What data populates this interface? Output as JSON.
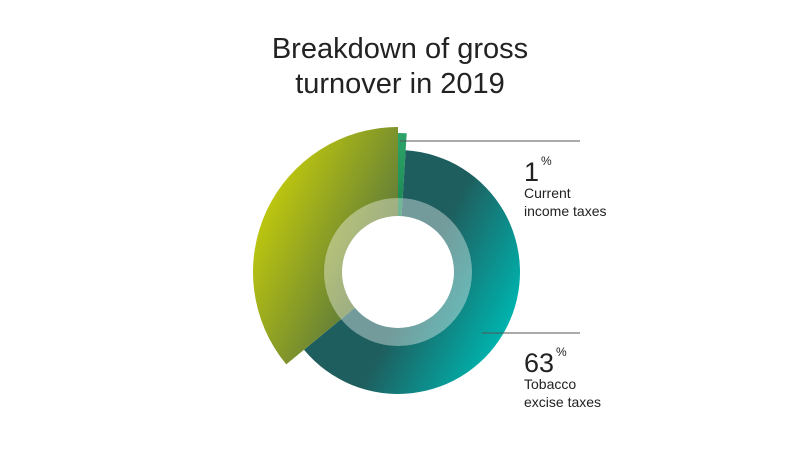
{
  "title_lines": [
    "Breakdown of gross",
    "turnover in 2019"
  ],
  "chart_data": {
    "type": "pie",
    "title": "Breakdown of gross turnover in 2019",
    "slices": [
      {
        "value": 1,
        "color_light": "#2ea46a",
        "color_dark": "#0f7a47"
      },
      {
        "value": 63,
        "color_light": "#00b2ad",
        "color_dark": "#1e5e5e"
      },
      {
        "value": 36,
        "color_light": "#bcc50f",
        "color_dark": "#5e7a3a"
      }
    ],
    "annotations": [
      {
        "number": "1",
        "unit": "%",
        "lines": [
          "Current",
          "income taxes"
        ]
      },
      {
        "number": "63",
        "unit": "%",
        "lines": [
          "Tobacco",
          "excise taxes"
        ]
      }
    ]
  }
}
